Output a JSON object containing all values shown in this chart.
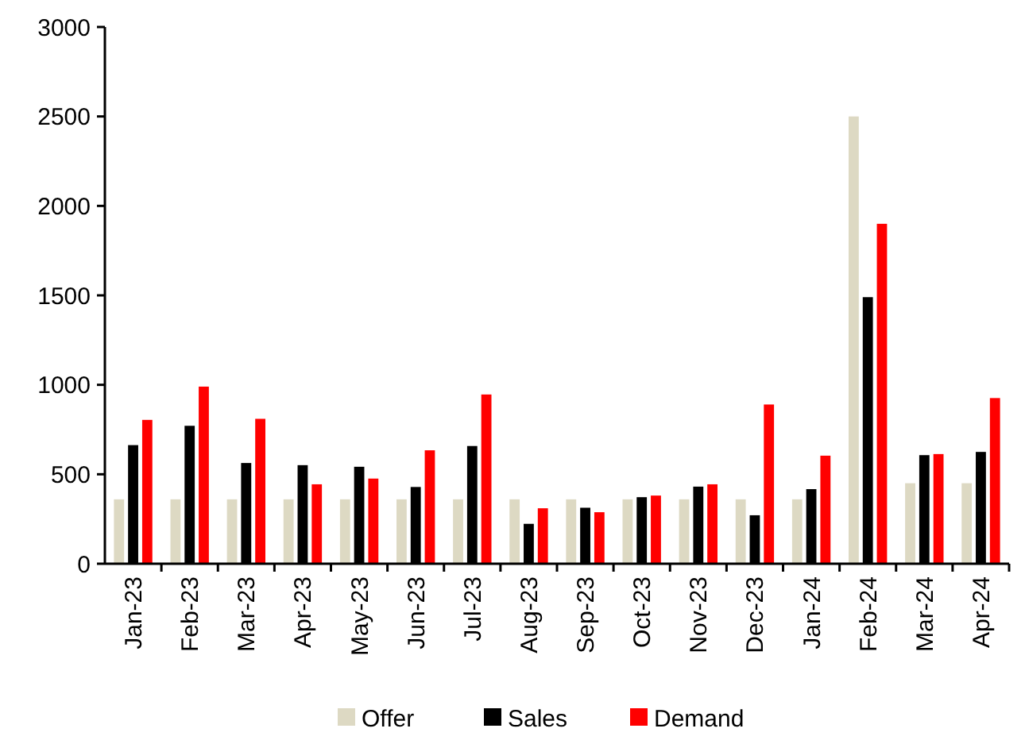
{
  "chart_data": {
    "type": "bar",
    "categories": [
      "Jan-23",
      "Feb-23",
      "Mar-23",
      "Apr-23",
      "May-23",
      "Jun-23",
      "Jul-23",
      "Aug-23",
      "Sep-23",
      "Oct-23",
      "Nov-23",
      "Dec-23",
      "Jan-24",
      "Feb-24",
      "Mar-24",
      "Apr-24"
    ],
    "series": [
      {
        "name": "Offer",
        "color": "#ddd9c3",
        "values": [
          360,
          360,
          360,
          360,
          360,
          360,
          360,
          360,
          360,
          360,
          360,
          360,
          360,
          2500,
          450,
          450
        ]
      },
      {
        "name": "Sales",
        "color": "#000000",
        "values": [
          663,
          771,
          563,
          551,
          542,
          429,
          658,
          223,
          313,
          372,
          431,
          271,
          417,
          1490,
          607,
          625
        ]
      },
      {
        "name": "Demand",
        "color": "#ff0000",
        "values": [
          804,
          990,
          810,
          444,
          476,
          634,
          946,
          310,
          288,
          381,
          444,
          890,
          604,
          1900,
          613,
          926
        ]
      }
    ],
    "ylim": [
      0,
      3000
    ],
    "yticks": [
      0,
      500,
      1000,
      1500,
      2000,
      2500,
      3000
    ],
    "grid": false,
    "legend": "bottom"
  }
}
